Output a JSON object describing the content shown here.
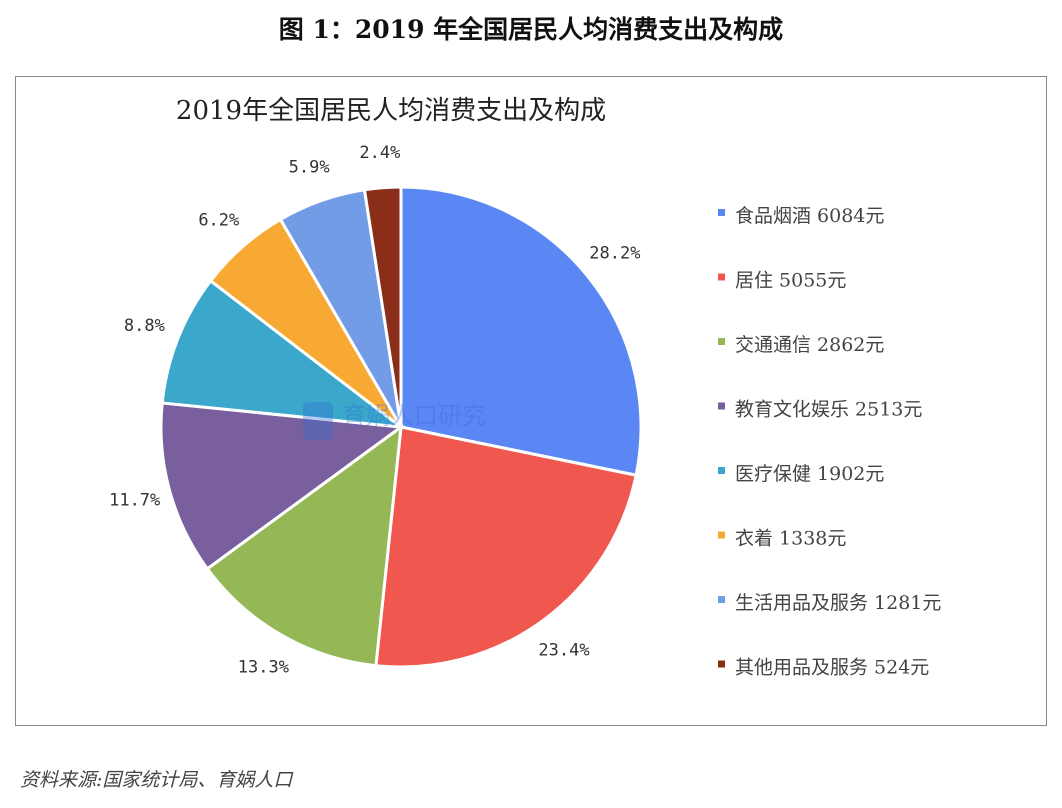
{
  "figure_title": "图 1：2019 年全国居民人均消费支出及构成",
  "source_note": "资料来源:国家统计局、育娲人口",
  "watermark_text": "育娲人口研究",
  "chart_data": {
    "type": "pie",
    "title": "2019年全国居民人均消费支出及构成",
    "legend_position": "right",
    "unit": "元",
    "slices": [
      {
        "name": "食品烟酒",
        "value": 6084,
        "percent_label": "28.2%",
        "color": "#5B87F5"
      },
      {
        "name": "居住",
        "value": 5055,
        "percent_label": "23.4%",
        "color": "#F0584F"
      },
      {
        "name": "交通通信",
        "value": 2862,
        "percent_label": "13.3%",
        "color": "#95B856"
      },
      {
        "name": "教育文化娱乐",
        "value": 2513,
        "percent_label": "11.7%",
        "color": "#7A5F9E"
      },
      {
        "name": "医疗保健",
        "value": 1902,
        "percent_label": "8.8%",
        "color": "#3AA7CB"
      },
      {
        "name": "衣着",
        "value": 1338,
        "percent_label": "6.2%",
        "color": "#F7A934"
      },
      {
        "name": "生活用品及服务",
        "value": 1281,
        "percent_label": "5.9%",
        "color": "#739CE6"
      },
      {
        "name": "其他用品及服务",
        "value": 524,
        "percent_label": "2.4%",
        "color": "#8A2E19"
      }
    ]
  }
}
